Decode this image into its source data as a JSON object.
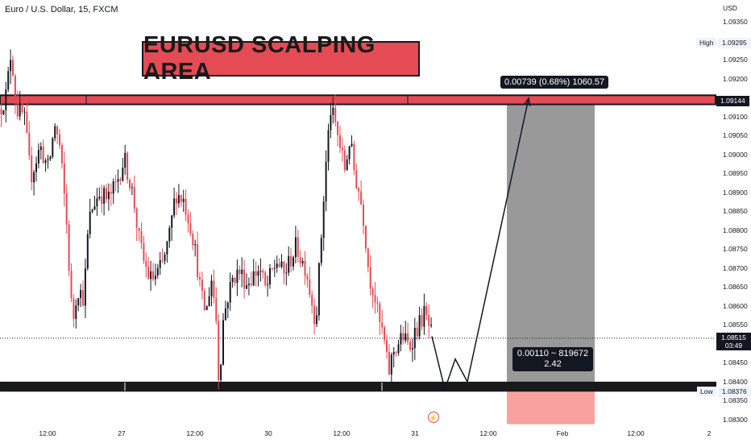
{
  "legend": {
    "text": "Euro / U.S. Dollar, 15, FXCM"
  },
  "title_banner": "EURUSD SCALPING AREA",
  "currency_label": "USD",
  "measure": {
    "top_label": "0.00739 (0.68%) 1060.57",
    "bottom_line1": "0.00110 ~ 819672",
    "bottom_line2": "2.42"
  },
  "price_scale": {
    "ticks": [
      "1.09350",
      "1.09250",
      "1.09200",
      "1.09100",
      "1.09050",
      "1.09000",
      "1.08950",
      "1.08900",
      "1.08850",
      "1.08800",
      "1.08750",
      "1.08700",
      "1.08650",
      "1.08600",
      "1.08550",
      "1.08450",
      "1.08400",
      "1.08350",
      "1.08300"
    ],
    "high_label": "High",
    "high_value": "1.09295",
    "low_label": "Low",
    "low_value": "1.08376",
    "resistance_value": "1.09144",
    "current_price": "1.08515",
    "countdown": "03:49"
  },
  "time_axis": [
    "12:00",
    "27",
    "12:00",
    "30",
    "12:00",
    "31",
    "12:00",
    "Feb",
    "12:00",
    "2"
  ],
  "colors": {
    "bull": "#131722",
    "bear": "#e44b55",
    "zone_red": "#e44b55",
    "target_fill": "#999999",
    "stop_fill": "#f8a29f"
  },
  "chart_data": {
    "type": "candlestick",
    "symbol": "Euro / U.S. Dollar, 15, FXCM",
    "ylim": [
      1.0829,
      1.0938
    ],
    "ohlc_path": [
      [
        0,
        1.0912
      ],
      [
        8,
        1.0916
      ],
      [
        14,
        1.0928
      ],
      [
        20,
        1.0912
      ],
      [
        30,
        1.091
      ],
      [
        38,
        1.0894
      ],
      [
        44,
        1.0898
      ],
      [
        50,
        1.0902
      ],
      [
        60,
        1.0896
      ],
      [
        68,
        1.0908
      ],
      [
        74,
        1.0902
      ],
      [
        82,
        1.0884
      ],
      [
        90,
        1.0855
      ],
      [
        96,
        1.0865
      ],
      [
        104,
        1.0862
      ],
      [
        110,
        1.0882
      ],
      [
        116,
        1.0887
      ],
      [
        124,
        1.089
      ],
      [
        134,
        1.0888
      ],
      [
        144,
        1.0892
      ],
      [
        154,
        1.0899
      ],
      [
        160,
        1.0894
      ],
      [
        166,
        1.0888
      ],
      [
        172,
        1.0878
      ],
      [
        178,
        1.0872
      ],
      [
        186,
        1.0867
      ],
      [
        194,
        1.0868
      ],
      [
        202,
        1.0871
      ],
      [
        210,
        1.0878
      ],
      [
        218,
        1.089
      ],
      [
        228,
        1.0888
      ],
      [
        238,
        1.088
      ],
      [
        244,
        1.0872
      ],
      [
        250,
        1.0862
      ],
      [
        256,
        1.0858
      ],
      [
        262,
        1.0868
      ],
      [
        268,
        1.0858
      ],
      [
        272,
        1.0838
      ],
      [
        276,
        1.0855
      ],
      [
        282,
        1.0862
      ],
      [
        290,
        1.0868
      ],
      [
        298,
        1.0869
      ],
      [
        306,
        1.0866
      ],
      [
        314,
        1.0868
      ],
      [
        322,
        1.087
      ],
      [
        330,
        1.0864
      ],
      [
        336,
        1.0868
      ],
      [
        344,
        1.0872
      ],
      [
        352,
        1.0868
      ],
      [
        360,
        1.0872
      ],
      [
        368,
        1.0876
      ],
      [
        374,
        1.0872
      ],
      [
        380,
        1.087
      ],
      [
        386,
        1.0862
      ],
      [
        392,
        1.0856
      ],
      [
        398,
        1.0876
      ],
      [
        404,
        1.0896
      ],
      [
        410,
        1.0912
      ],
      [
        416,
        1.0908
      ],
      [
        422,
        1.0902
      ],
      [
        428,
        1.0896
      ],
      [
        434,
        1.0904
      ],
      [
        440,
        1.0895
      ],
      [
        446,
        1.089
      ],
      [
        452,
        1.0882
      ],
      [
        458,
        1.0868
      ],
      [
        464,
        1.0864
      ],
      [
        470,
        1.0856
      ],
      [
        476,
        1.0852
      ],
      [
        482,
        1.0842
      ],
      [
        488,
        1.0848
      ],
      [
        494,
        1.085
      ],
      [
        500,
        1.0852
      ],
      [
        508,
        1.0849
      ],
      [
        514,
        1.0853
      ],
      [
        520,
        1.0855
      ],
      [
        526,
        1.0858
      ],
      [
        530,
        1.0856
      ],
      [
        536,
        1.0852
      ]
    ],
    "resistance_zone": [
      1.09132,
      1.09156
    ],
    "support_zone": [
      1.08376,
      1.08398
    ],
    "current_price": 1.08515,
    "projection_path": [
      [
        536,
        1.0852
      ],
      [
        552,
        1.0838
      ],
      [
        565,
        1.0846
      ],
      [
        580,
        1.084
      ],
      [
        656,
        1.09148
      ]
    ],
    "target_box": {
      "x": [
        629,
        738
      ],
      "y": [
        1.08398,
        1.09148
      ]
    },
    "stop_box": {
      "x": [
        629,
        738
      ],
      "y": [
        1.08288,
        1.08398
      ]
    },
    "measure_top_text": "0.00739 (0.68%) 1060.57",
    "measure_bottom_text": [
      "0.00110 ~ 819672",
      "2.42"
    ]
  }
}
